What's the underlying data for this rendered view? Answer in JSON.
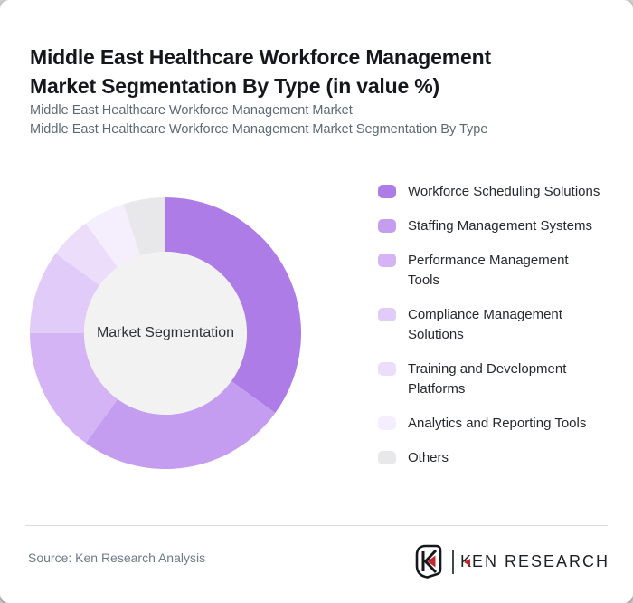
{
  "header": {
    "title": "Middle East Healthcare Workforce Management Market Segmentation By Type (in value %)",
    "subtitle_lines": [
      "Middle East Healthcare Workforce Management Market",
      "Middle East Healthcare Workforce Management Market Segmentation By Type"
    ]
  },
  "chart_data": {
    "type": "pie",
    "donut": true,
    "title": "Middle East Healthcare Workforce Management Market Segmentation By Type (in value %)",
    "center_label": "Market Segmentation",
    "unit": "value %",
    "start_angle_deg": 0,
    "direction": "clockwise",
    "inner_radius_ratio": 0.6,
    "legend_position": "right",
    "data_labels_shown": false,
    "segments": [
      {
        "label": "Workforce Scheduling Solutions",
        "value": 35,
        "color": "#ae7ce6"
      },
      {
        "label": "Staffing Management Systems",
        "value": 25,
        "color": "#c49df0"
      },
      {
        "label": "Performance Management Tools",
        "value": 15,
        "color": "#d4b4f4"
      },
      {
        "label": "Compliance Management Solutions",
        "value": 10,
        "color": "#e1cbf8"
      },
      {
        "label": "Training and Development Platforms",
        "value": 5,
        "color": "#ecdefa"
      },
      {
        "label": "Analytics and Reporting Tools",
        "value": 5,
        "color": "#f5effd"
      },
      {
        "label": "Others",
        "value": 5,
        "color": "#e8e7ea"
      }
    ],
    "center_circle_color": "#f2f2f2"
  },
  "footer": {
    "source_text": "Source: Ken Research Analysis",
    "logo": {
      "brand_k": "K",
      "brand_rest": "EN RESEARCH"
    }
  },
  "theme": {
    "card_bg": "#ffffff",
    "title_color": "#14171c",
    "subtitle_color": "#5d6a75",
    "legend_text_color": "#26292e",
    "source_color": "#6e7b87",
    "divider_color": "#dcdcdc",
    "logo_red": "#c1272d",
    "logo_dark": "#1d2025"
  }
}
